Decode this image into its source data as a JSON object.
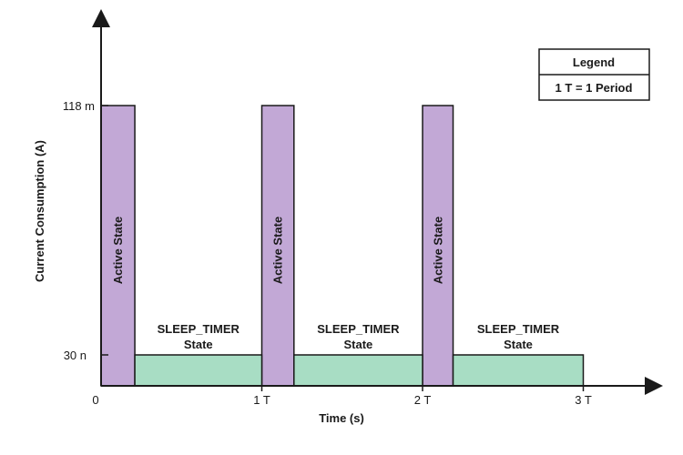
{
  "chart_data": {
    "type": "bar",
    "title": "",
    "xlabel": "Time (s)",
    "ylabel": "Current Consumption (A)",
    "x_ticks": [
      "0",
      "1 T",
      "2 T",
      "3 T"
    ],
    "y_ticks": [
      "30 n",
      "118 m"
    ],
    "legend": {
      "title": "Legend",
      "entries": [
        "1 T = 1 Period"
      ],
      "position": "top-right"
    },
    "colors": {
      "active": "#c2a8d6",
      "sleep": "#a8ddc4",
      "stroke": "#1a1a1a"
    },
    "series": [
      {
        "label": "Active State",
        "state": "active",
        "value_level": "118 m",
        "segments": [
          {
            "start_T": 0.0,
            "end_T": 0.21
          },
          {
            "start_T": 1.0,
            "end_T": 1.2
          },
          {
            "start_T": 2.0,
            "end_T": 2.19
          }
        ]
      },
      {
        "label_lines": [
          "SLEEP_TIMER",
          "State"
        ],
        "state": "sleep",
        "value_level": "30 n",
        "segments": [
          {
            "start_T": 0.21,
            "end_T": 1.0
          },
          {
            "start_T": 1.2,
            "end_T": 2.0
          },
          {
            "start_T": 2.19,
            "end_T": 3.0
          }
        ]
      }
    ]
  }
}
